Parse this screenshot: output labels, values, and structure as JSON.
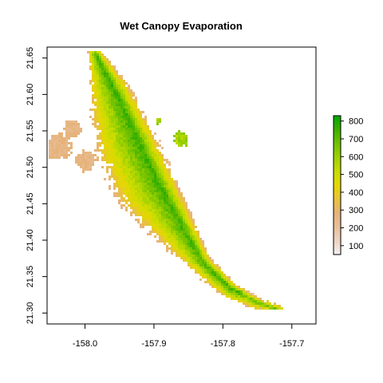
{
  "chart_data": {
    "type": "heatmap",
    "title": "Wet Canopy Evaporation",
    "xlabel": "",
    "ylabel": "",
    "xlim": [
      -158.055,
      -157.665
    ],
    "ylim": [
      21.285,
      21.665
    ],
    "x_ticks": [
      {
        "value": -158.0,
        "label": "-158.0"
      },
      {
        "value": -157.9,
        "label": "-157.9"
      },
      {
        "value": -157.8,
        "label": "-157.8"
      },
      {
        "value": -157.7,
        "label": "-157.7"
      }
    ],
    "y_ticks": [
      {
        "value": 21.3,
        "label": "21.30"
      },
      {
        "value": 21.35,
        "label": "21.35"
      },
      {
        "value": 21.4,
        "label": "21.40"
      },
      {
        "value": 21.45,
        "label": "21.45"
      },
      {
        "value": 21.5,
        "label": "21.50"
      },
      {
        "value": 21.55,
        "label": "21.55"
      },
      {
        "value": 21.6,
        "label": "21.60"
      },
      {
        "value": 21.65,
        "label": "21.65"
      }
    ],
    "legend": {
      "placement": "right",
      "min": 50,
      "max": 830,
      "ticks": [
        {
          "value": 100,
          "label": "100"
        },
        {
          "value": 200,
          "label": "200"
        },
        {
          "value": 300,
          "label": "300"
        },
        {
          "value": 400,
          "label": "400"
        },
        {
          "value": 500,
          "label": "500"
        },
        {
          "value": 600,
          "label": "600"
        },
        {
          "value": 700,
          "label": "700"
        },
        {
          "value": 800,
          "label": "800"
        }
      ],
      "colors": [
        "#f2f2f2",
        "#eed3c3",
        "#e8c09a",
        "#e6b27a",
        "#e8c23c",
        "#e4d800",
        "#c8dc00",
        "#9fd100",
        "#72c200",
        "#3eb000",
        "#00a600"
      ]
    },
    "region": {
      "spine": [
        {
          "x": -157.985,
          "y": 21.655
        },
        {
          "x": -157.955,
          "y": 21.6
        },
        {
          "x": -157.925,
          "y": 21.54
        },
        {
          "x": -157.895,
          "y": 21.48
        },
        {
          "x": -157.86,
          "y": 21.42
        },
        {
          "x": -157.83,
          "y": 21.37
        },
        {
          "x": -157.79,
          "y": 21.335
        },
        {
          "x": -157.75,
          "y": 21.315
        },
        {
          "x": -157.7,
          "y": 21.3
        }
      ],
      "west_width": [
        0.012,
        0.04,
        0.06,
        0.058,
        0.038,
        0.018,
        0.014,
        0.01,
        0.004
      ],
      "east_width": [
        0.01,
        0.022,
        0.024,
        0.024,
        0.018,
        0.012,
        0.009,
        0.007,
        0.003
      ],
      "dry_patches": [
        {
          "x": -158.04,
          "y": 21.53,
          "r": 0.018
        },
        {
          "x": -158.0,
          "y": 21.51,
          "r": 0.014
        },
        {
          "x": -158.02,
          "y": 21.555,
          "r": 0.012
        }
      ],
      "islands": [
        {
          "x": -157.862,
          "y": 21.54,
          "r": 0.01
        },
        {
          "x": -157.895,
          "y": 21.565,
          "r": 0.004
        }
      ]
    }
  }
}
